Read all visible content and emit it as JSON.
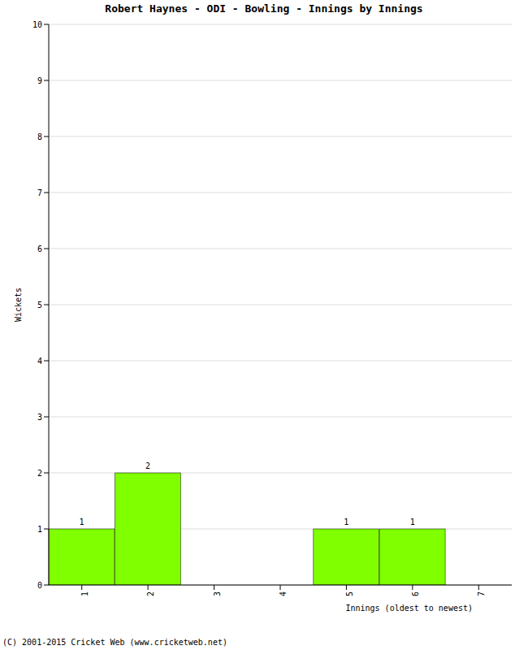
{
  "chart_data": {
    "type": "bar",
    "title": "Robert Haynes - ODI - Bowling - Innings by Innings",
    "x_label": "Innings (oldest to newest)",
    "y_label": "Wickets",
    "annotations": [
      "(C) 2001-2015 Cricket Web (www.cricketweb.net)"
    ],
    "categories": [
      "1",
      "2",
      "3",
      "4",
      "5",
      "6",
      "7"
    ],
    "values": [
      1,
      2,
      0,
      0,
      1,
      1,
      0
    ],
    "color": "#80ff00",
    "ylim": [
      0,
      10
    ],
    "yticks": [
      0,
      1,
      2,
      3,
      4,
      5,
      6,
      7,
      8,
      9,
      10
    ],
    "grid": true,
    "data_labels": true
  }
}
